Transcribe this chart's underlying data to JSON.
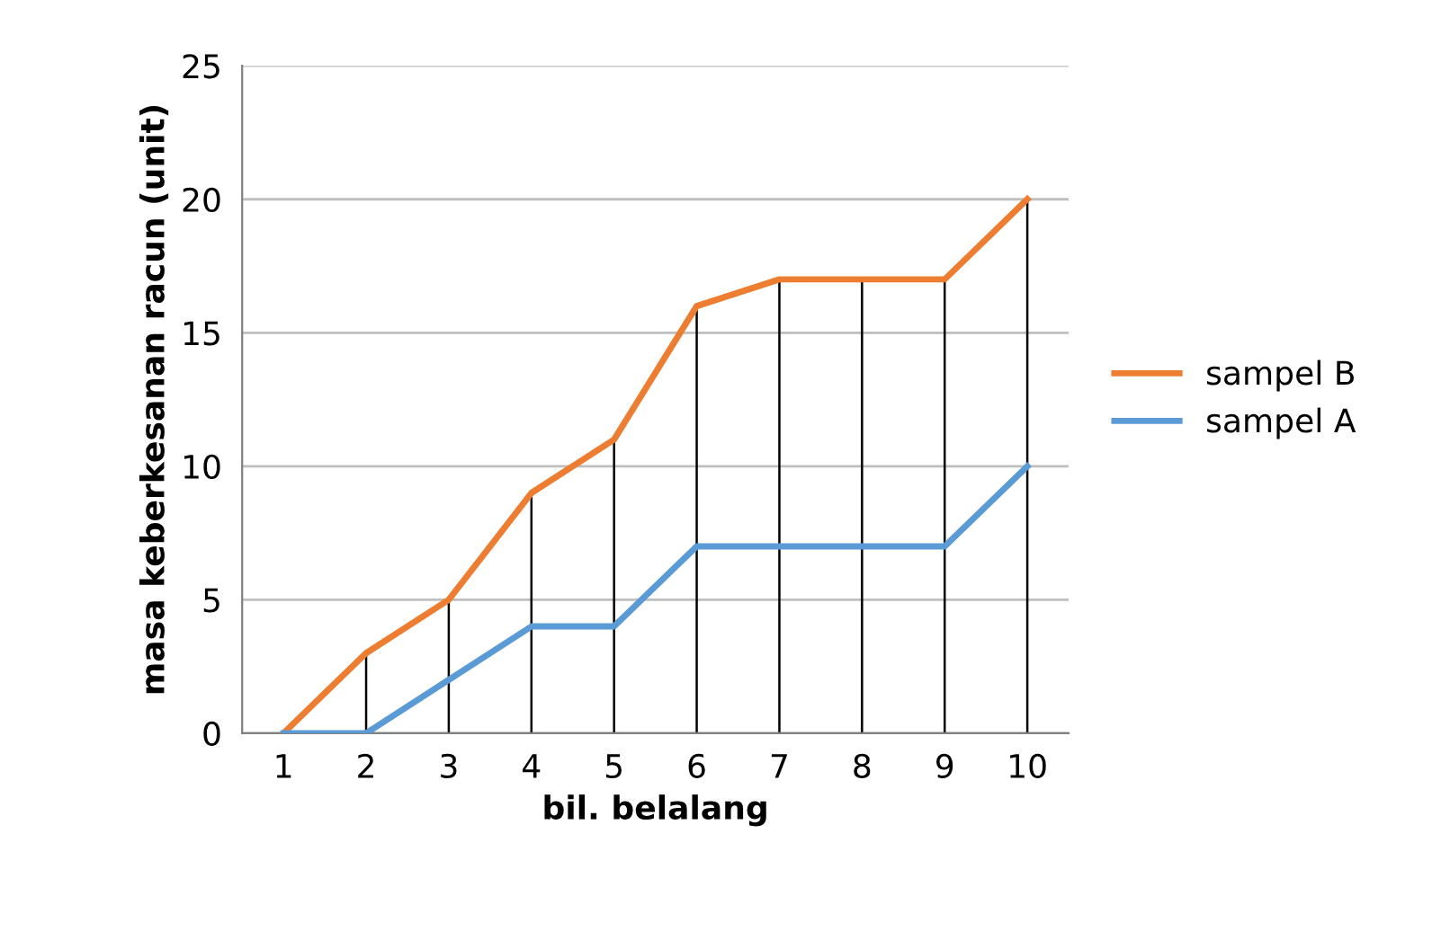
{
  "chart_data": {
    "type": "line",
    "xlabel": "bil. belalang",
    "ylabel": "masa keberkesanan racun (unit)",
    "categories": [
      "1",
      "2",
      "3",
      "4",
      "5",
      "6",
      "7",
      "8",
      "9",
      "10"
    ],
    "series": [
      {
        "name": "sampel B",
        "color": "#ed7d31",
        "values": [
          0,
          3,
          5,
          9,
          11,
          16,
          17,
          17,
          17,
          20
        ],
        "errors": [
          null,
          [
            0,
            3
          ],
          [
            0,
            5
          ],
          [
            0,
            9
          ],
          [
            0,
            11
          ],
          [
            0,
            16
          ],
          [
            0,
            17
          ],
          [
            0,
            17
          ],
          [
            0,
            17
          ],
          [
            0,
            20
          ]
        ]
      },
      {
        "name": "sampel A",
        "color": "#5b9bd5",
        "values": [
          0,
          0,
          2,
          4,
          4,
          7,
          7,
          7,
          7,
          10
        ]
      }
    ],
    "ylim": [
      0,
      25
    ],
    "yticks": [
      0,
      5,
      10,
      15,
      20,
      25
    ],
    "grid": "y",
    "legend": "right",
    "marker": "none",
    "line_style": "solid"
  }
}
